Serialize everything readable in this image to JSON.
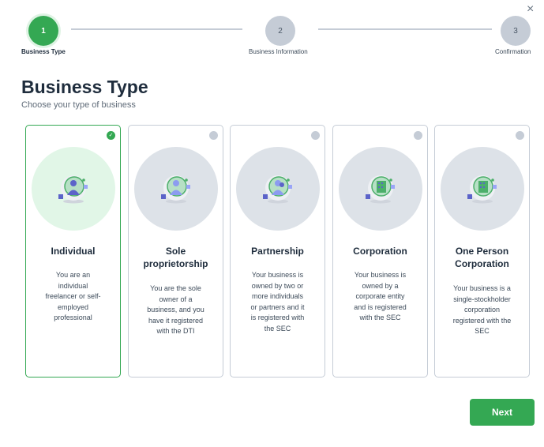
{
  "steps": [
    {
      "number": "1",
      "label": "Business Type",
      "active": true
    },
    {
      "number": "2",
      "label": "Business Information",
      "active": false
    },
    {
      "number": "3",
      "label": "Confirmation",
      "active": false
    }
  ],
  "close_icon": "×",
  "heading": "Business Type",
  "subheading": "Choose your type of business",
  "cards": [
    {
      "title": "Individual",
      "description": "You are an individual freelancer or self-employed professional",
      "selected": true,
      "icon": "person-icon"
    },
    {
      "title": "Sole proprietorship",
      "description": "You are the sole owner of a business, and you have it registered with the DTI",
      "selected": false,
      "icon": "person-tie-icon"
    },
    {
      "title": "Partnership",
      "description": "Your business is owned by two or more individuals or partners and it is registered with the SEC",
      "selected": false,
      "icon": "people-icon"
    },
    {
      "title": "Corporation",
      "description": "Your business is owned by a corporate entity and is registered with the SEC",
      "selected": false,
      "icon": "building-icon"
    },
    {
      "title": "One Person Corporation",
      "description": "Your business is a single-stockholder corporation registered with the SEC",
      "selected": false,
      "icon": "building-person-icon"
    }
  ],
  "next_label": "Next",
  "colors": {
    "accent": "#34a853",
    "inactive": "#c5ccd6"
  }
}
